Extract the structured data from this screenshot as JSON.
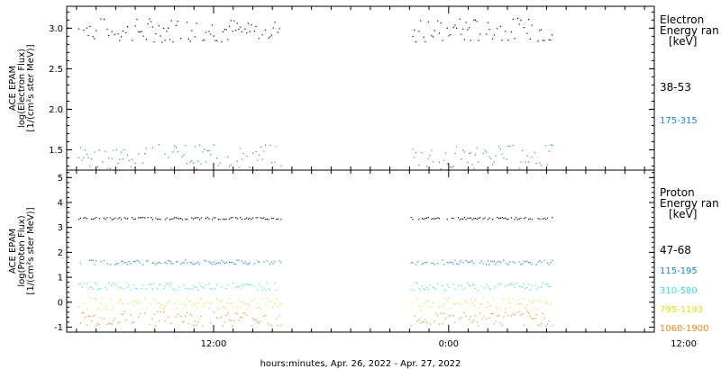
{
  "xaxis": {
    "label": "hours:minutes, Apr. 26, 2022 - Apr. 27, 2022",
    "range": [
      4.5,
      34.5
    ],
    "ticks": [
      {
        "x": 12,
        "label": "12:00"
      },
      {
        "x": 24,
        "label": "0:00"
      },
      {
        "x": 36,
        "label": "12:00"
      }
    ],
    "gap": [
      15.5,
      22.0
    ],
    "data_end": 29.3
  },
  "chart_data": [
    {
      "type": "scatter",
      "panel": "electron",
      "ylabel_lines": [
        "ACE EPAM",
        "log(Electron Flux)",
        "[1/(cm²s ster MeV)]"
      ],
      "ylim": [
        1.25,
        3.27
      ],
      "yticks": [
        1.5,
        2.0,
        2.5,
        3.0
      ],
      "ytick_labels": [
        "1.5",
        "2.0",
        "2.5",
        "3.0"
      ],
      "legend_title": [
        "Electron",
        "Energy ran",
        "[keV]"
      ],
      "series": [
        {
          "name": "38-53",
          "color": "#000000",
          "mean": 2.98,
          "spread": 0.05
        },
        {
          "name": "175-315",
          "color": "#1a85d6",
          "mean": 1.42,
          "spread": 0.05
        }
      ]
    },
    {
      "type": "scatter",
      "panel": "proton",
      "ylabel_lines": [
        "ACE EPAM",
        "log(Proton Flux)",
        "[1/(cm²s ster MeV)]"
      ],
      "ylim": [
        -1.2,
        5.3
      ],
      "yticks": [
        -1,
        0,
        1,
        2,
        3,
        4,
        5
      ],
      "ytick_labels": [
        "-1",
        "0",
        "1",
        "2",
        "3",
        "4",
        "5"
      ],
      "legend_title": [
        "Proton",
        "Energy ran",
        "[keV]"
      ],
      "series": [
        {
          "name": "47-68",
          "color": "#000000",
          "mean": 3.38,
          "spread": 0.015
        },
        {
          "name": "115-195",
          "color": "#1a85d6",
          "mean": 1.62,
          "spread": 0.03
        },
        {
          "name": "310-580",
          "color": "#33dddd",
          "mean": 0.65,
          "spread": 0.05
        },
        {
          "name": "795-1193",
          "color": "#dddd11",
          "mean": -0.05,
          "spread": 0.08
        },
        {
          "name": "1060-1900",
          "color": "#ee8811",
          "mean": -0.65,
          "spread": 0.1
        }
      ]
    }
  ]
}
